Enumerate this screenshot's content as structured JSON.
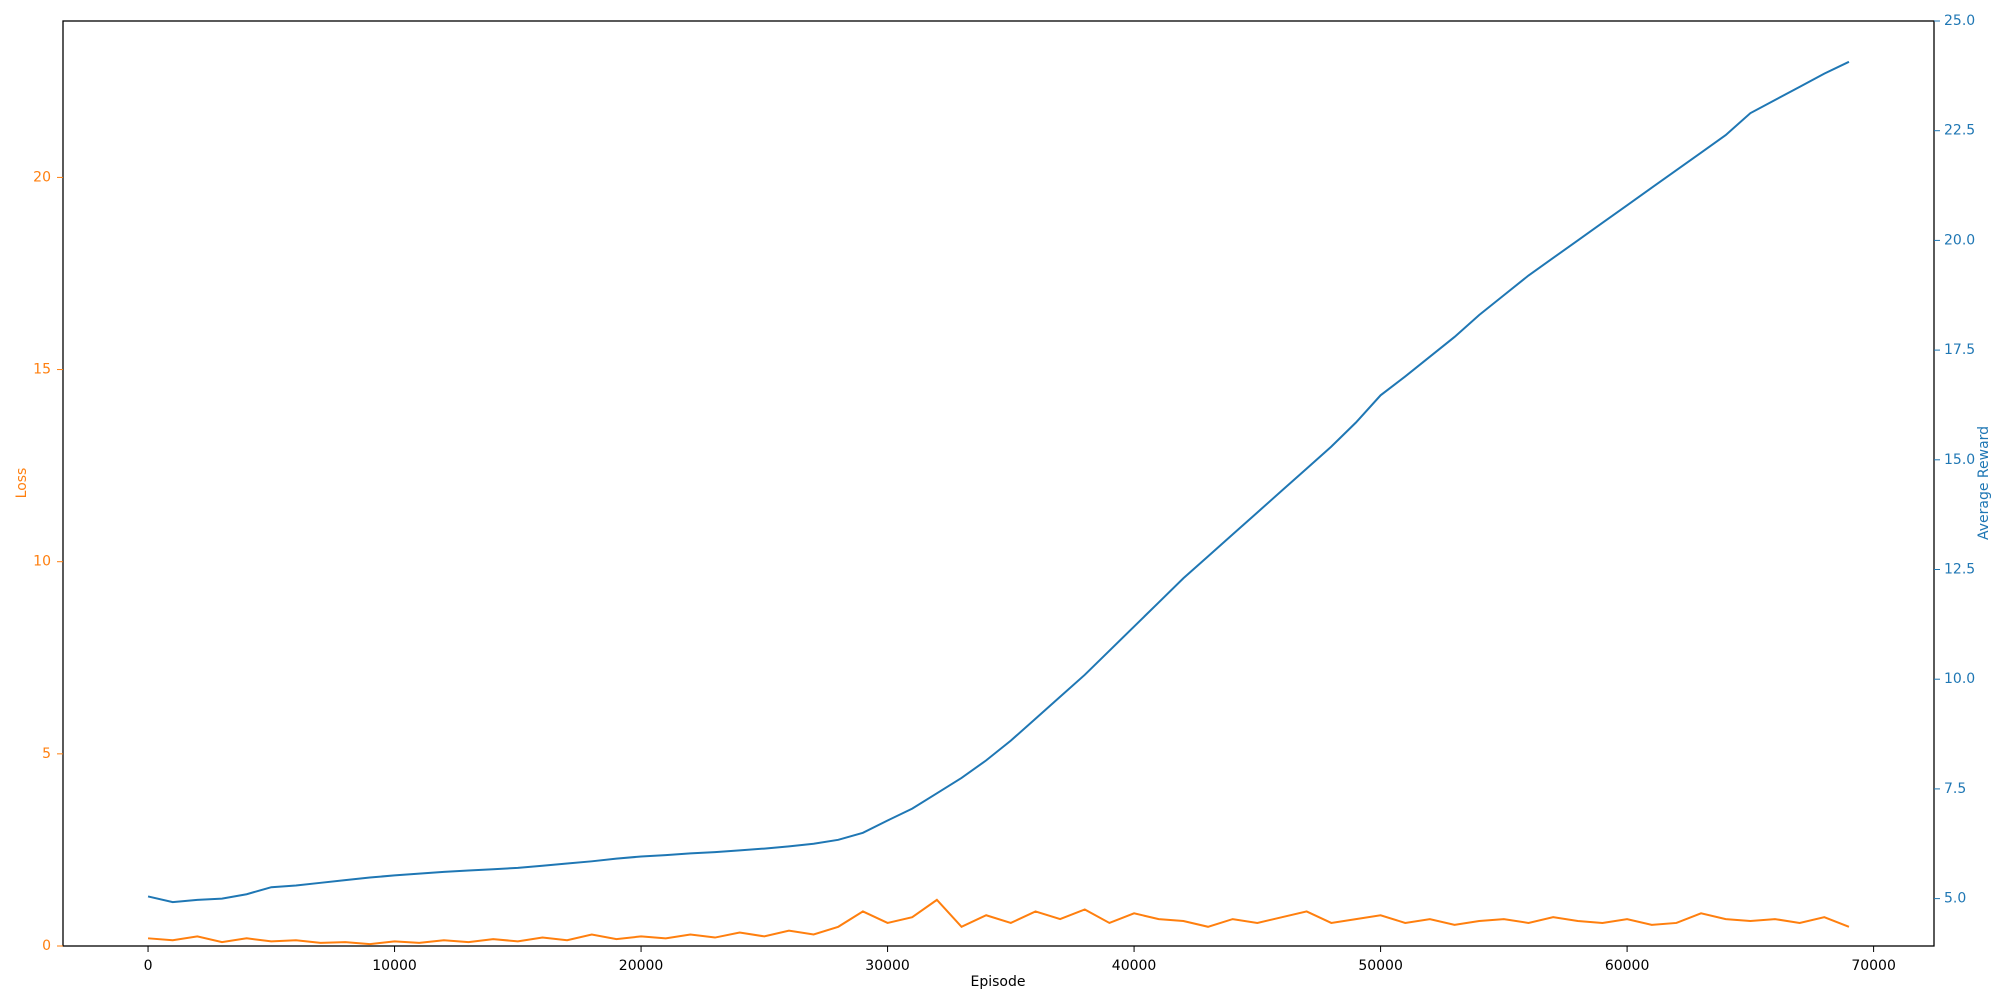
{
  "chart_data": {
    "type": "line",
    "xlabel": "Episode",
    "ylabel": "Loss",
    "y2label": "Average Reward",
    "x": [
      0,
      1000,
      2000,
      3000,
      4000,
      5000,
      6000,
      7000,
      8000,
      9000,
      10000,
      11000,
      12000,
      13000,
      14000,
      15000,
      16000,
      17000,
      18000,
      19000,
      20000,
      21000,
      22000,
      23000,
      24000,
      25000,
      26000,
      27000,
      28000,
      29000,
      30000,
      31000,
      32000,
      33000,
      34000,
      35000,
      36000,
      37000,
      38000,
      39000,
      40000,
      41000,
      42000,
      43000,
      44000,
      45000,
      46000,
      47000,
      48000,
      49000,
      50000,
      51000,
      52000,
      53000,
      54000,
      55000,
      56000,
      57000,
      58000,
      59000,
      60000,
      61000,
      62000,
      63000,
      64000,
      65000,
      66000,
      67000,
      68000,
      69000
    ],
    "series": [
      {
        "name": "Loss",
        "color": "#ff7f0e",
        "axis": "y",
        "values": [
          0.2,
          0.15,
          0.25,
          0.1,
          0.2,
          0.12,
          0.15,
          0.08,
          0.1,
          0.05,
          0.12,
          0.08,
          0.15,
          0.1,
          0.18,
          0.12,
          0.22,
          0.15,
          0.3,
          0.18,
          0.25,
          0.2,
          0.3,
          0.22,
          0.35,
          0.25,
          0.4,
          0.3,
          0.5,
          0.9,
          0.6,
          0.75,
          1.2,
          0.5,
          0.8,
          0.6,
          0.9,
          0.7,
          0.95,
          0.6,
          0.85,
          0.7,
          0.65,
          0.5,
          0.7,
          0.6,
          0.75,
          0.9,
          0.6,
          0.7,
          0.8,
          0.6,
          0.7,
          0.55,
          0.65,
          0.7,
          0.6,
          0.75,
          0.65,
          0.6,
          0.7,
          0.55,
          0.6,
          0.85,
          0.7,
          0.65,
          0.7,
          0.6,
          0.75,
          0.5
        ]
      },
      {
        "name": "Average Reward",
        "color": "#1f77b4",
        "axis": "y2",
        "values": [
          5.05,
          4.92,
          4.97,
          5.0,
          5.1,
          5.26,
          5.3,
          5.36,
          5.42,
          5.48,
          5.53,
          5.57,
          5.61,
          5.64,
          5.67,
          5.7,
          5.75,
          5.8,
          5.85,
          5.91,
          5.96,
          5.99,
          6.03,
          6.06,
          6.1,
          6.14,
          6.19,
          6.25,
          6.34,
          6.5,
          6.78,
          7.05,
          7.4,
          7.75,
          8.15,
          8.6,
          9.1,
          9.6,
          10.1,
          10.65,
          11.2,
          11.75,
          12.3,
          12.8,
          13.3,
          13.8,
          14.3,
          14.8,
          15.3,
          15.85,
          16.47,
          16.9,
          17.35,
          17.8,
          18.3,
          18.75,
          19.2,
          19.6,
          20.0,
          20.4,
          20.8,
          21.2,
          21.6,
          22.0,
          22.4,
          22.9,
          23.2,
          23.5,
          23.8,
          24.07
        ]
      }
    ],
    "xlim": [
      -3450,
      72450
    ],
    "xticks": [
      0,
      10000,
      20000,
      30000,
      40000,
      50000,
      60000,
      70000
    ],
    "ylim": [
      0,
      24.07
    ],
    "yticks": [
      0,
      5,
      10,
      15,
      20
    ],
    "y2lim": [
      3.92,
      25.0
    ],
    "y2ticks": [
      {
        "value": 5,
        "label": "5.0"
      },
      {
        "value": 7.5,
        "label": "7.5"
      },
      {
        "value": 10,
        "label": "10.0"
      },
      {
        "value": 12.5,
        "label": "12.5"
      },
      {
        "value": 15,
        "label": "15.0"
      },
      {
        "value": 17.5,
        "label": "17.5"
      },
      {
        "value": 20,
        "label": "20.0"
      },
      {
        "value": 22.5,
        "label": "22.5"
      },
      {
        "value": 25,
        "label": "25.0"
      }
    ],
    "grid": false
  }
}
